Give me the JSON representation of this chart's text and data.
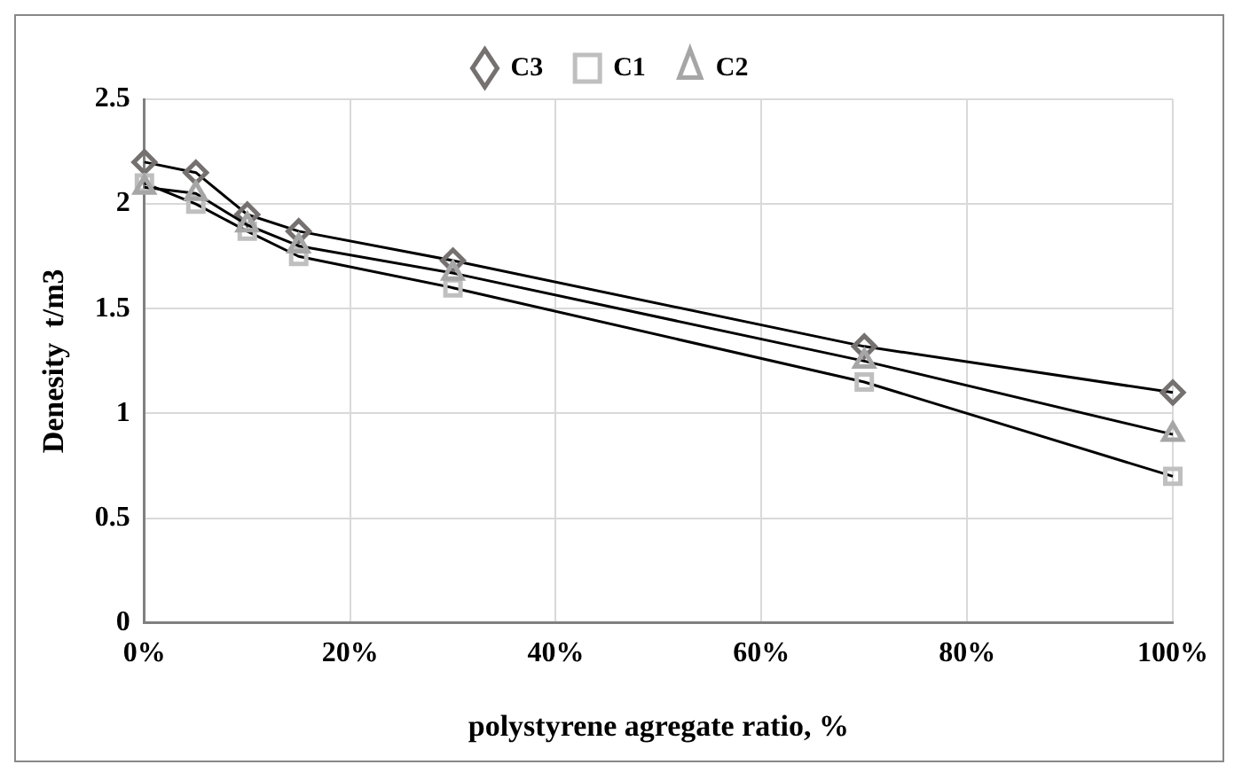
{
  "chart_data": {
    "type": "line",
    "xlabel": "polystyrene agregate ratio, %",
    "ylabel": "Denesity  t/m3",
    "x": [
      0,
      5,
      10,
      15,
      30,
      70,
      100
    ],
    "series": [
      {
        "name": "C3",
        "color": "#767171",
        "marker": "diamond",
        "values": [
          2.2,
          2.15,
          1.95,
          1.87,
          1.73,
          1.32,
          1.1
        ]
      },
      {
        "name": "C1",
        "color": "#bfbfbf",
        "marker": "square",
        "values": [
          2.1,
          2.0,
          1.87,
          1.75,
          1.6,
          1.15,
          0.7
        ]
      },
      {
        "name": "C2",
        "color": "#a6a6a6",
        "marker": "triangle",
        "values": [
          2.08,
          2.05,
          1.9,
          1.8,
          1.67,
          1.25,
          0.9
        ]
      }
    ],
    "xlim": [
      0,
      100
    ],
    "xticks": [
      {
        "value": 0,
        "label": "0%"
      },
      {
        "value": 20,
        "label": "20%"
      },
      {
        "value": 40,
        "label": "40%"
      },
      {
        "value": 60,
        "label": "60%"
      },
      {
        "value": 80,
        "label": "80%"
      },
      {
        "value": 100,
        "label": "100%"
      }
    ],
    "ylim": [
      0,
      2.5
    ],
    "yticks": [
      0,
      0.5,
      1,
      1.5,
      2,
      2.5
    ],
    "grid": true,
    "legend": "top",
    "line_style": "solid"
  }
}
